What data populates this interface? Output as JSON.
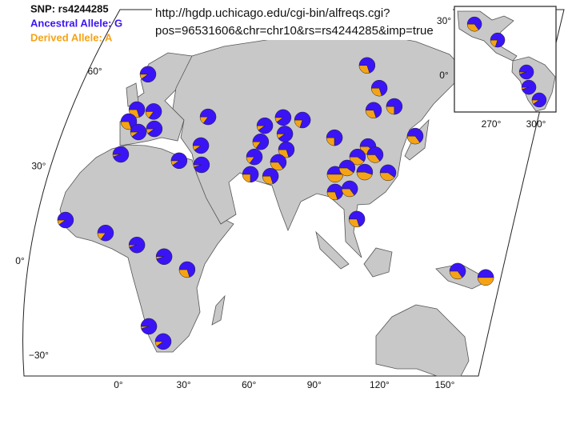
{
  "legend": {
    "snp": "SNP: rs4244285",
    "ancestral": "Ancestral Allele: G",
    "derived": "Derived Allele: A"
  },
  "url": [
    "http://hgdp.uchicago.edu/cgi-bin/alfreqs.cgi?",
    "pos=96531606&chr=chr10&rs=rs4244285&imp=true"
  ],
  "colors": {
    "ancestral": "#3b14f5",
    "derived": "#f5a316"
  },
  "main_map": {
    "lat_ticks": [
      {
        "value": 60,
        "label": "60°"
      },
      {
        "value": 30,
        "label": "30°"
      },
      {
        "value": 0,
        "label": "0°"
      },
      {
        "value": -30,
        "label": "−30°"
      }
    ],
    "lon_ticks": [
      {
        "value": 0,
        "label": "0°"
      },
      {
        "value": 30,
        "label": "30°"
      },
      {
        "value": 60,
        "label": "60°"
      },
      {
        "value": 90,
        "label": "90°"
      },
      {
        "value": 120,
        "label": "120°"
      },
      {
        "value": 150,
        "label": "150°"
      }
    ],
    "pies": [
      {
        "lon": 13.6,
        "lat": 59.3,
        "derived": 0.1
      },
      {
        "lon": 8.5,
        "lat": 48.1,
        "derived": 0.3
      },
      {
        "lon": 16.2,
        "lat": 47.5,
        "derived": 0.15
      },
      {
        "lon": 4.8,
        "lat": 44.3,
        "derived": 0.3
      },
      {
        "lon": 9.2,
        "lat": 41.0,
        "derived": 0.1
      },
      {
        "lon": 16.5,
        "lat": 42.0,
        "derived": 0.1
      },
      {
        "lon": 1.1,
        "lat": 33.9,
        "derived": 0.05
      },
      {
        "lon": 41.2,
        "lat": 45.8,
        "derived": 0.15
      },
      {
        "lon": 37.9,
        "lat": 36.7,
        "derived": 0.1
      },
      {
        "lon": 27.9,
        "lat": 31.9,
        "derived": 0.1
      },
      {
        "lon": 38.2,
        "lat": 30.6,
        "derived": 0.05
      },
      {
        "lon": -24.3,
        "lat": 13.1,
        "derived": 0.1
      },
      {
        "lon": -5.9,
        "lat": 9.0,
        "derived": 0.15
      },
      {
        "lon": 8.5,
        "lat": 5.2,
        "derived": 0.05
      },
      {
        "lon": 21.0,
        "lat": 1.5,
        "derived": 0.05
      },
      {
        "lon": 31.6,
        "lat": -2.6,
        "derived": 0.3
      },
      {
        "lon": 14.0,
        "lat": -20.6,
        "derived": 0.05
      },
      {
        "lon": 20.6,
        "lat": -25.4,
        "derived": 0.1
      },
      {
        "lon": 75.7,
        "lat": 45.6,
        "derived": 0.1
      },
      {
        "lon": 84.6,
        "lat": 44.8,
        "derived": 0.2
      },
      {
        "lon": 67.3,
        "lat": 43.0,
        "derived": 0.1
      },
      {
        "lon": 76.5,
        "lat": 40.4,
        "derived": 0.1
      },
      {
        "lon": 65.4,
        "lat": 37.9,
        "derived": 0.15
      },
      {
        "lon": 77.2,
        "lat": 35.4,
        "derived": 0.3
      },
      {
        "lon": 62.5,
        "lat": 33.1,
        "derived": 0.15
      },
      {
        "lon": 73.5,
        "lat": 31.4,
        "derived": 0.35
      },
      {
        "lon": 60.7,
        "lat": 27.6,
        "derived": 0.25
      },
      {
        "lon": 69.9,
        "lat": 27.0,
        "derived": 0.3
      },
      {
        "lon": 114.3,
        "lat": 62.1,
        "derived": 0.3
      },
      {
        "lon": 119.9,
        "lat": 54.9,
        "derived": 0.3
      },
      {
        "lon": 126.8,
        "lat": 49.1,
        "derived": 0.25
      },
      {
        "lon": 117.3,
        "lat": 47.9,
        "derived": 0.3
      },
      {
        "lon": 99.3,
        "lat": 39.2,
        "derived": 0.25
      },
      {
        "lon": 114.7,
        "lat": 36.4,
        "derived": 0.4
      },
      {
        "lon": 118.0,
        "lat": 33.8,
        "derived": 0.35
      },
      {
        "lon": 109.9,
        "lat": 33.1,
        "derived": 0.4
      },
      {
        "lon": 136.4,
        "lat": 39.7,
        "derived": 0.35
      },
      {
        "lon": 99.6,
        "lat": 27.6,
        "derived": 0.5
      },
      {
        "lon": 105.1,
        "lat": 29.6,
        "derived": 0.4
      },
      {
        "lon": 113.2,
        "lat": 28.3,
        "derived": 0.45
      },
      {
        "lon": 123.9,
        "lat": 28.1,
        "derived": 0.4
      },
      {
        "lon": 99.6,
        "lat": 22.0,
        "derived": 0.3
      },
      {
        "lon": 106.3,
        "lat": 23.0,
        "derived": 0.35
      },
      {
        "lon": 109.6,
        "lat": 13.4,
        "derived": 0.3
      },
      {
        "lon": 155.9,
        "lat": -3.1,
        "derived": 0.35
      },
      {
        "lon": 168.8,
        "lat": -5.1,
        "derived": 0.5
      }
    ]
  },
  "inset_map": {
    "lat_ticks": [
      {
        "value": 30,
        "label": "30°"
      },
      {
        "value": 0,
        "label": "0°"
      }
    ],
    "lon_ticks": [
      {
        "value": 270,
        "label": "270°"
      },
      {
        "value": 300,
        "label": "300°"
      }
    ],
    "pies": [
      {
        "lon": 258.8,
        "lat": 28.6,
        "derived": 0.35
      },
      {
        "lon": 274.3,
        "lat": 19.8,
        "derived": 0.2
      },
      {
        "lon": 293.6,
        "lat": 2.2,
        "derived": 0.05
      },
      {
        "lon": 295.2,
        "lat": -6.2,
        "derived": 0.05
      },
      {
        "lon": 302.1,
        "lat": -13.2,
        "derived": 0.1
      }
    ]
  }
}
